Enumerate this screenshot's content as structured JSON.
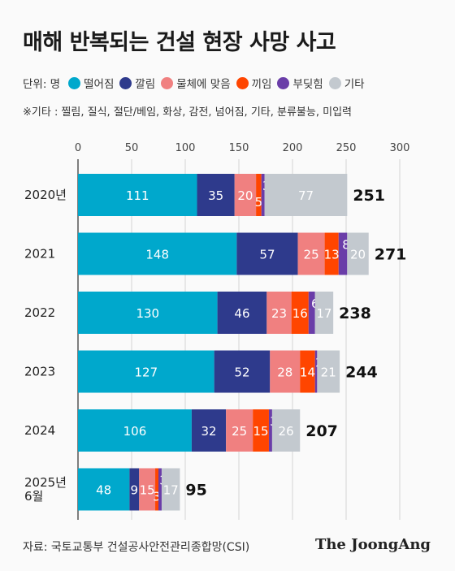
{
  "header": {
    "title": "매해 반복되는 건설 현장 사망 사고",
    "unit": "단위: 명",
    "note": "※기타 : 찔림, 질식, 절단/베임, 화상, 감전, 넘어짐, 기타, 분류불능, 미입력"
  },
  "legend": [
    {
      "label": "떨어짐",
      "color": "#00a8cc"
    },
    {
      "label": "깔림",
      "color": "#2e3a8c"
    },
    {
      "label": "물체에 맞음",
      "color": "#f08080"
    },
    {
      "label": "끼임",
      "color": "#ff4500"
    },
    {
      "label": "부딪힘",
      "color": "#6a3da8"
    },
    {
      "label": "기타",
      "color": "#c3c9cf"
    }
  ],
  "chart_data": {
    "type": "bar",
    "orientation": "horizontal",
    "stacked": true,
    "xlim": [
      0,
      300
    ],
    "xticks": [
      "0",
      "50",
      "100",
      "150",
      "200",
      "250",
      "300"
    ],
    "categories": [
      "2020년",
      "2021",
      "2022",
      "2023",
      "2024",
      "2025년\n6월"
    ],
    "series": [
      {
        "name": "떨어짐",
        "color": "#00a8cc",
        "values": [
          111,
          148,
          130,
          127,
          106,
          48
        ]
      },
      {
        "name": "깔림",
        "color": "#2e3a8c",
        "values": [
          35,
          57,
          46,
          52,
          32,
          9
        ]
      },
      {
        "name": "물체에 맞음",
        "color": "#f08080",
        "values": [
          20,
          25,
          23,
          28,
          25,
          15
        ]
      },
      {
        "name": "끼임",
        "color": "#ff4500",
        "values": [
          5,
          13,
          16,
          14,
          15,
          3
        ]
      },
      {
        "name": "부딪힘",
        "color": "#6a3da8",
        "values": [
          3,
          8,
          6,
          2,
          3,
          3
        ]
      },
      {
        "name": "기타",
        "color": "#c3c9cf",
        "values": [
          77,
          20,
          17,
          21,
          26,
          17
        ]
      }
    ],
    "totals": [
      251,
      271,
      238,
      244,
      207,
      95
    ]
  },
  "footer": {
    "source": "자료: 국토교통부 건설공사안전관리종합망(CSI)",
    "brand": "The JoongAng"
  }
}
